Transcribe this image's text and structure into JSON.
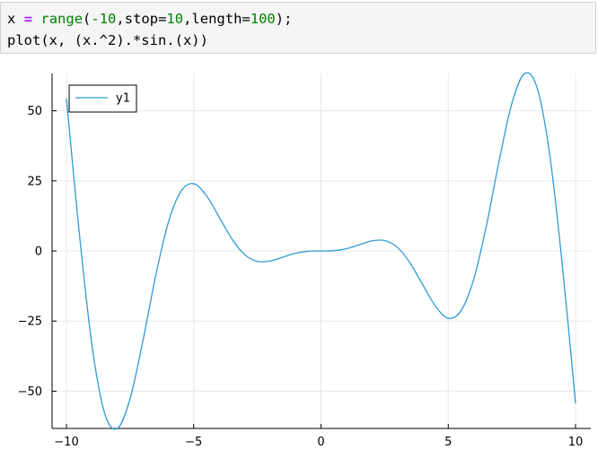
{
  "code": {
    "line1": {
      "var": "x",
      "assign": "=",
      "fn": "range",
      "open": "(",
      "start": "-10",
      "sep1": ",",
      "kw1": "stop",
      "eq1": "=",
      "stop": "10",
      "sep2": ",",
      "kw2": "length",
      "eq2": "=",
      "length": "100",
      "close": ");"
    },
    "line2": "plot(x, (x.^2).*sin.(x))"
  },
  "colors": {
    "series": "#2f9ad6",
    "axis": "#000000",
    "grid": "#e8e8e8"
  },
  "chart_data": {
    "type": "line",
    "title": "",
    "xlabel": "",
    "ylabel": "",
    "xlim": [
      -10,
      10
    ],
    "ylim": [
      -63.3,
      63.3
    ],
    "x_ticks": [
      -10,
      -5,
      0,
      5,
      10
    ],
    "y_ticks": [
      -50,
      -25,
      0,
      25,
      50
    ],
    "x_tick_labels": [
      "−10",
      "−5",
      "0",
      "5",
      "10"
    ],
    "y_tick_labels": [
      "−50",
      "−25",
      "0",
      "25",
      "50"
    ],
    "grid": true,
    "legend": "top-left",
    "series": [
      {
        "name": "y1",
        "x": [
          -10,
          -9.5,
          -9,
          -8.5,
          -8,
          -7.5,
          -7,
          -6.5,
          -6,
          -5.5,
          -5,
          -4.5,
          -4,
          -3.5,
          -3,
          -2.5,
          -2,
          -1.5,
          -1,
          -0.5,
          0,
          0.5,
          1,
          1.5,
          2,
          2.5,
          3,
          3.5,
          4,
          4.5,
          5,
          5.5,
          6,
          6.5,
          7,
          7.5,
          8,
          8.5,
          9,
          9.5,
          10
        ],
        "y": [
          54.4,
          6.8,
          -33.4,
          -57.9,
          -63.3,
          -52.7,
          -32.2,
          -9.1,
          10.1,
          21.3,
          24.0,
          19.7,
          12.1,
          4.3,
          -1.3,
          -3.7,
          -3.6,
          -2.2,
          -0.8,
          -0.1,
          0.0,
          0.1,
          0.8,
          2.2,
          3.6,
          3.7,
          1.3,
          -4.3,
          -12.1,
          -19.7,
          -24.0,
          -21.3,
          -10.1,
          9.1,
          32.2,
          52.7,
          63.3,
          57.9,
          33.4,
          -6.8,
          -54.4
        ]
      }
    ]
  }
}
